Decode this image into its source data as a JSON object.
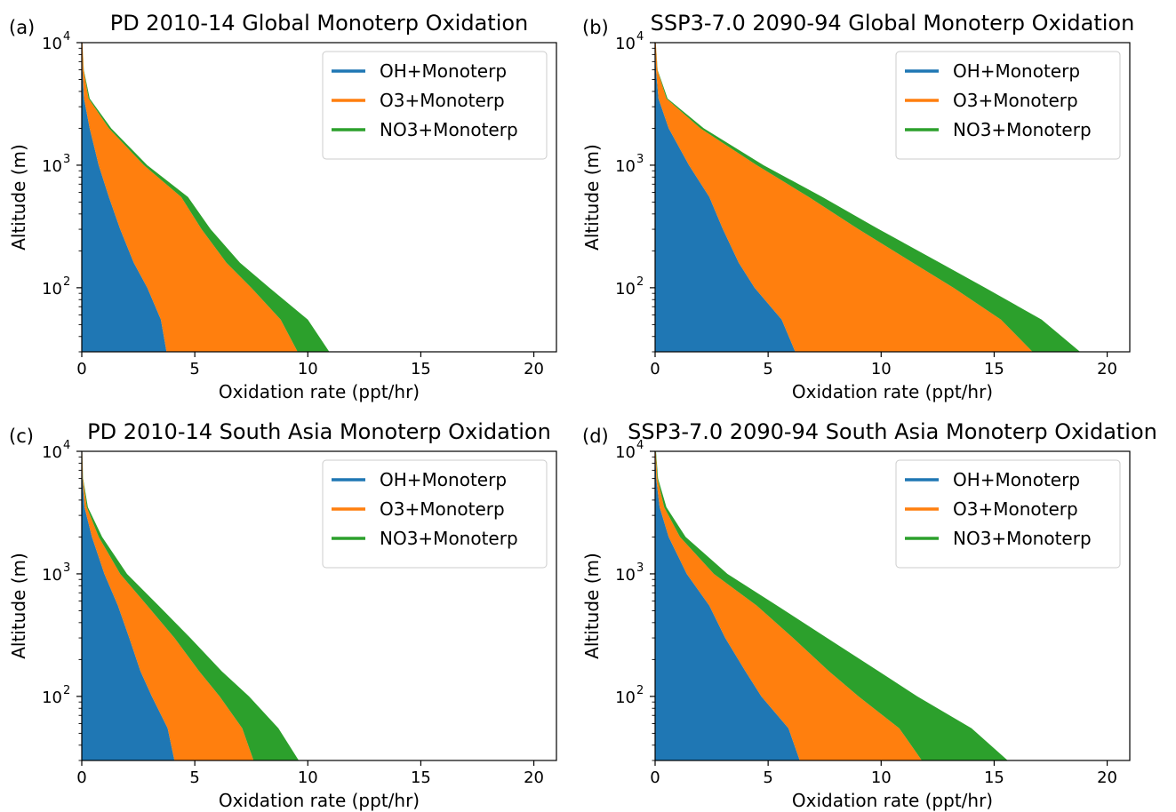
{
  "figure": {
    "colors": {
      "oh": "#1f77b4",
      "o3": "#ff7f0e",
      "no3": "#2ca02c"
    }
  },
  "chart_data": [
    {
      "type": "area",
      "panel_label": "(a)",
      "title": "PD 2010-14 Global Monoterp Oxidation",
      "xlabel": "Oxidation rate (ppt/hr)",
      "ylabel": "Altitude (m)",
      "xlim": [
        0,
        21
      ],
      "ylim": [
        30,
        10000
      ],
      "yscale": "log",
      "xticks": [
        0,
        5,
        10,
        15,
        20
      ],
      "yticks": [
        {
          "label": "10",
          "exp": "2"
        },
        {
          "label": "10",
          "exp": "3"
        },
        {
          "label": "10",
          "exp": "4"
        }
      ],
      "legend": "upper-right",
      "stacked": true,
      "altitude": [
        30,
        55,
        100,
        160,
        300,
        550,
        1000,
        2000,
        3500,
        6000,
        10000
      ],
      "series": [
        {
          "name": "OH+Monoterp",
          "values": [
            3.75,
            3.5,
            2.9,
            2.3,
            1.7,
            1.2,
            0.75,
            0.35,
            0.1,
            0.03,
            0.01
          ]
        },
        {
          "name": "O3+Monoterp",
          "values": [
            5.8,
            5.3,
            4.6,
            4.1,
            3.6,
            3.2,
            2.0,
            0.85,
            0.2,
            0.05,
            0.02
          ]
        },
        {
          "name": "NO3+Monoterp",
          "values": [
            1.4,
            1.2,
            0.8,
            0.6,
            0.4,
            0.3,
            0.15,
            0.1,
            0.05,
            0.01,
            0.0
          ]
        }
      ]
    },
    {
      "type": "area",
      "panel_label": "(b)",
      "title": "SSP3-7.0 2090-94 Global Monoterp Oxidation",
      "xlabel": "Oxidation rate (ppt/hr)",
      "ylabel": "Altitude (m)",
      "xlim": [
        0,
        21
      ],
      "ylim": [
        30,
        10000
      ],
      "yscale": "log",
      "xticks": [
        0,
        5,
        10,
        15,
        20
      ],
      "yticks": [
        {
          "label": "10",
          "exp": "2"
        },
        {
          "label": "10",
          "exp": "3"
        },
        {
          "label": "10",
          "exp": "4"
        }
      ],
      "legend": "upper-right",
      "stacked": true,
      "altitude": [
        30,
        55,
        100,
        160,
        300,
        550,
        1000,
        2000,
        3500,
        6000,
        10000
      ],
      "series": [
        {
          "name": "OH+Monoterp",
          "values": [
            6.2,
            5.6,
            4.4,
            3.7,
            3.0,
            2.4,
            1.5,
            0.6,
            0.15,
            0.04,
            0.01
          ]
        },
        {
          "name": "O3+Monoterp",
          "values": [
            10.5,
            9.7,
            8.8,
            7.7,
            6.0,
            4.4,
            3.0,
            1.4,
            0.35,
            0.06,
            0.02
          ]
        },
        {
          "name": "NO3+Monoterp",
          "values": [
            2.1,
            1.8,
            1.4,
            1.2,
            0.9,
            0.6,
            0.3,
            0.15,
            0.05,
            0.01,
            0.0
          ]
        }
      ]
    },
    {
      "type": "area",
      "panel_label": "(c)",
      "title": "PD 2010-14 South Asia Monoterp Oxidation",
      "xlabel": "Oxidation rate (ppt/hr)",
      "ylabel": "Altitude (m)",
      "xlim": [
        0,
        21
      ],
      "ylim": [
        30,
        10000
      ],
      "yscale": "log",
      "xticks": [
        0,
        5,
        10,
        15,
        20
      ],
      "yticks": [
        {
          "label": "10",
          "exp": "2"
        },
        {
          "label": "10",
          "exp": "3"
        },
        {
          "label": "10",
          "exp": "4"
        }
      ],
      "legend": "upper-right",
      "stacked": true,
      "altitude": [
        30,
        55,
        100,
        160,
        300,
        550,
        1000,
        2000,
        3500,
        6000,
        10000
      ],
      "series": [
        {
          "name": "OH+Monoterp",
          "values": [
            4.1,
            3.8,
            3.1,
            2.6,
            2.1,
            1.6,
            1.0,
            0.45,
            0.12,
            0.03,
            0.01
          ]
        },
        {
          "name": "O3+Monoterp",
          "values": [
            3.5,
            3.3,
            3.0,
            2.6,
            2.0,
            1.3,
            0.7,
            0.3,
            0.1,
            0.02,
            0.01
          ]
        },
        {
          "name": "NO3+Monoterp",
          "values": [
            2.0,
            1.6,
            1.3,
            1.0,
            0.7,
            0.5,
            0.3,
            0.15,
            0.05,
            0.01,
            0.0
          ]
        }
      ]
    },
    {
      "type": "area",
      "panel_label": "(d)",
      "title": "SSP3-7.0 2090-94 South Asia Monoterp Oxidation",
      "xlabel": "Oxidation rate (ppt/hr)",
      "ylabel": "Altitude (m)",
      "xlim": [
        0,
        21
      ],
      "ylim": [
        30,
        10000
      ],
      "yscale": "log",
      "xticks": [
        0,
        5,
        10,
        15,
        20
      ],
      "yticks": [
        {
          "label": "10",
          "exp": "2"
        },
        {
          "label": "10",
          "exp": "3"
        },
        {
          "label": "10",
          "exp": "4"
        }
      ],
      "legend": "upper-right",
      "stacked": true,
      "altitude": [
        30,
        55,
        100,
        160,
        300,
        550,
        1000,
        2000,
        3500,
        6000,
        10000
      ],
      "series": [
        {
          "name": "OH+Monoterp",
          "values": [
            6.4,
            5.9,
            4.7,
            4.0,
            3.1,
            2.4,
            1.4,
            0.6,
            0.2,
            0.05,
            0.01
          ]
        },
        {
          "name": "O3+Monoterp",
          "values": [
            5.4,
            4.9,
            4.3,
            3.7,
            3.0,
            2.1,
            1.2,
            0.5,
            0.2,
            0.05,
            0.02
          ]
        },
        {
          "name": "NO3+Monoterp",
          "values": [
            3.8,
            3.2,
            2.6,
            2.2,
            1.5,
            0.9,
            0.6,
            0.25,
            0.1,
            0.03,
            0.01
          ]
        }
      ]
    }
  ]
}
